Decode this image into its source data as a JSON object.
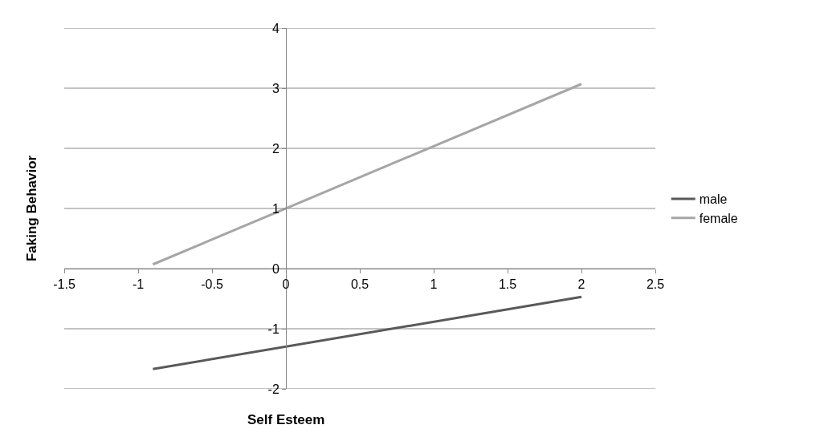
{
  "chart_data": {
    "type": "line",
    "xlabel": "Self Esteem",
    "ylabel": "Faking Behavior",
    "series": [
      {
        "name": "male",
        "color": "#595959",
        "values": [
          -1.67,
          -0.47
        ]
      },
      {
        "name": "female",
        "color": "#a6a6a6",
        "values": [
          0.07,
          3.07
        ]
      }
    ],
    "x": [
      -0.9,
      2
    ],
    "xlim": [
      -1.5,
      2.5
    ],
    "xticks": [
      -1.5,
      -1,
      -0.5,
      0,
      0.5,
      1,
      1.5,
      2,
      2.5
    ],
    "ylim": [
      -2,
      4
    ],
    "yticks": [
      -2,
      -1,
      0,
      1,
      2,
      3,
      4
    ],
    "grid": "y",
    "legend": "right",
    "marker": "none",
    "line_style": "solid"
  }
}
